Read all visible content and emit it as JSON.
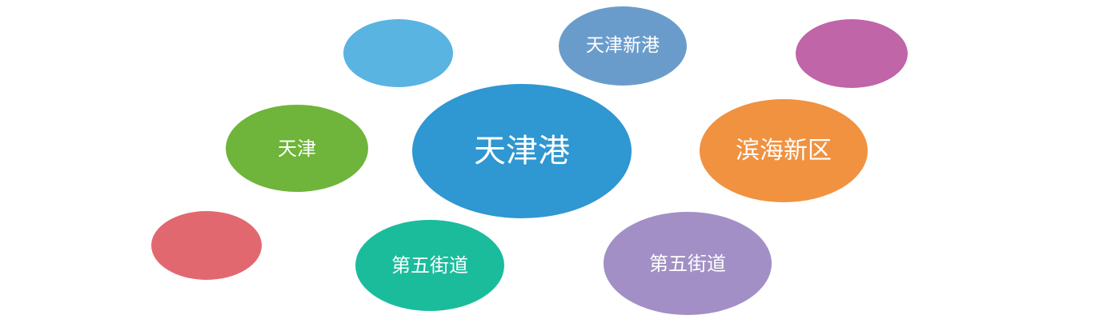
{
  "diagram": {
    "nodes": [
      {
        "id": "center",
        "label": "天津港",
        "color": "#2F97D1"
      },
      {
        "id": "tianjin",
        "label": "天津",
        "color": "#6FB43B"
      },
      {
        "id": "xingang",
        "label": "天津新港",
        "color": "#6A9CCB"
      },
      {
        "id": "binhai",
        "label": "滨海新区",
        "color": "#F09240"
      },
      {
        "id": "wudao-l",
        "label": "第五街道",
        "color": "#1BBC9C"
      },
      {
        "id": "wudao-r",
        "label": "第五街道",
        "color": "#A28FC5"
      },
      {
        "id": "blue",
        "label": "",
        "color": "#5AB4E1"
      },
      {
        "id": "magenta",
        "label": "",
        "color": "#BF65A8"
      },
      {
        "id": "red",
        "label": "",
        "color": "#E2686F"
      }
    ]
  }
}
